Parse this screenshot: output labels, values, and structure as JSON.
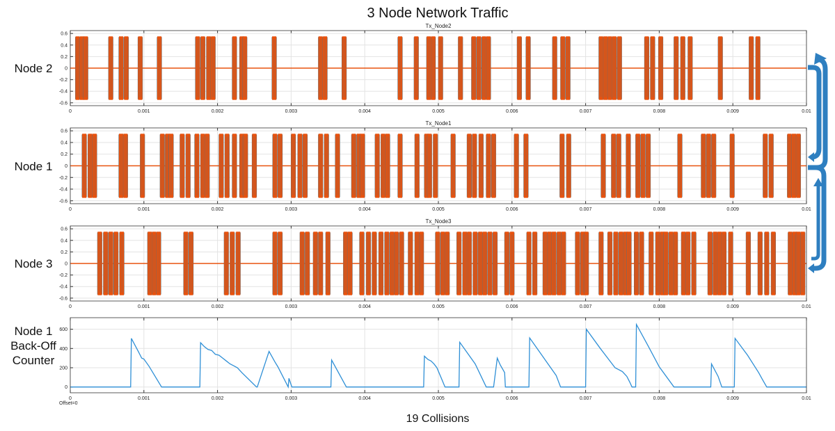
{
  "title": "3 Node Network Traffic",
  "footer": "19 Collisions",
  "offset_label": "Offset=0",
  "colors": {
    "signal": "#e8520e",
    "signal_edge": "#6b6b6b",
    "counter": "#2e8fd6",
    "arrow": "#2e7fc0",
    "grid": "#e3e3e3"
  },
  "chart_data": [
    {
      "type": "line",
      "title": "Tx_Node2",
      "row_label": "Node 2",
      "xlim": [
        0,
        0.01
      ],
      "ylim": [
        -0.65,
        0.65
      ],
      "x_ticks": [
        "0",
        "0.001",
        "0.002",
        "0.003",
        "0.004",
        "0.005",
        "0.006",
        "0.007",
        "0.008",
        "0.009",
        "0.01"
      ],
      "y_ticks": [
        "0.6",
        "0.4",
        "0.2",
        "0",
        "-0.2",
        "-0.4",
        "-0.6"
      ],
      "amplitude": 0.55,
      "bursts": [
        0.0001,
        0.00016,
        0.00021,
        0.00055,
        0.00069,
        0.00076,
        0.00095,
        0.00121,
        0.00173,
        0.0018,
        0.00188,
        0.00194,
        0.00223,
        0.00233,
        0.00237,
        0.00277,
        0.0034,
        0.00346,
        0.00372,
        0.00448,
        0.0047,
        0.00487,
        0.00493,
        0.00503,
        0.0053,
        0.00548,
        0.00555,
        0.00562,
        0.00568,
        0.0061,
        0.00622,
        0.00658,
        0.00669,
        0.00676,
        0.00721,
        0.00727,
        0.00733,
        0.00739,
        0.00746,
        0.00783,
        0.00791,
        0.00802,
        0.00823,
        0.00832,
        0.00842,
        0.00883,
        0.00925,
        0.00934
      ]
    },
    {
      "type": "line",
      "title": "Tx_Node1",
      "row_label": "Node 1",
      "xlim": [
        0,
        0.01
      ],
      "ylim": [
        -0.65,
        0.65
      ],
      "x_ticks": [
        "0",
        "0.001",
        "0.002",
        "0.003",
        "0.004",
        "0.005",
        "0.006",
        "0.007",
        "0.008",
        "0.009",
        "0.01"
      ],
      "y_ticks": [
        "0.6",
        "0.4",
        "0.2",
        "0",
        "-0.2",
        "-0.4",
        "-0.6"
      ],
      "amplitude": 0.55,
      "bursts": [
        0.00019,
        0.00027,
        0.00033,
        0.00069,
        0.00075,
        0.00098,
        0.00125,
        0.00132,
        0.00137,
        0.00152,
        0.0016,
        0.00172,
        0.0018,
        0.00186,
        0.00205,
        0.00213,
        0.00223,
        0.00233,
        0.00238,
        0.0025,
        0.00278,
        0.00285,
        0.00303,
        0.00312,
        0.00319,
        0.0034,
        0.00348,
        0.00363,
        0.00385,
        0.00392,
        0.00397,
        0.00417,
        0.00425,
        0.00431,
        0.00448,
        0.00471,
        0.00484,
        0.00488,
        0.00496,
        0.0052,
        0.00542,
        0.00549,
        0.00558,
        0.00568,
        0.00575,
        0.00606,
        0.00619,
        0.00668,
        0.00677,
        0.00724,
        0.00738,
        0.00745,
        0.00758,
        0.00771,
        0.00778,
        0.00785,
        0.00828,
        0.0086,
        0.00867,
        0.00874,
        0.00899,
        0.00944,
        0.00952,
        0.00977,
        0.00983,
        0.00989
      ]
    },
    {
      "type": "line",
      "title": "Tx_Node3",
      "row_label": "Node 3",
      "xlim": [
        0,
        0.01
      ],
      "ylim": [
        -0.65,
        0.65
      ],
      "x_ticks": [
        "0",
        "0.001",
        "0.002",
        "0.003",
        "0.004",
        "0.005",
        "0.006",
        "0.007",
        "0.008",
        "0.009",
        "0.01"
      ],
      "y_ticks": [
        "0.6",
        "0.4",
        "0.2",
        "0",
        "-0.2",
        "-0.4",
        "-0.6"
      ],
      "amplitude": 0.55,
      "bursts": [
        0.0004,
        0.00048,
        0.00055,
        0.00062,
        0.0007,
        0.00108,
        0.00114,
        0.0012,
        0.00157,
        0.00164,
        0.00212,
        0.0022,
        0.00228,
        0.00278,
        0.00285,
        0.00315,
        0.00322,
        0.00333,
        0.0034,
        0.0035,
        0.00374,
        0.0038,
        0.00396,
        0.00405,
        0.00413,
        0.00422,
        0.0043,
        0.00437,
        0.00443,
        0.0045,
        0.00462,
        0.00471,
        0.00477,
        0.00499,
        0.00506,
        0.00512,
        0.00528,
        0.00536,
        0.00542,
        0.0055,
        0.00557,
        0.00563,
        0.0057,
        0.00577,
        0.00593,
        0.006,
        0.00623,
        0.00631,
        0.00645,
        0.00651,
        0.00657,
        0.00664,
        0.0067,
        0.00689,
        0.00696,
        0.00701,
        0.00721,
        0.00733,
        0.00741,
        0.00748,
        0.00754,
        0.00759,
        0.00769,
        0.00776,
        0.00789,
        0.00798,
        0.00804,
        0.00809,
        0.00816,
        0.00822,
        0.00833,
        0.00839,
        0.00847,
        0.00869,
        0.00876,
        0.00882,
        0.00888,
        0.00897,
        0.00921,
        0.00937,
        0.00946,
        0.00955,
        0.00978,
        0.00984,
        0.00989,
        0.00995
      ]
    },
    {
      "type": "line",
      "title": "",
      "row_label": [
        "Node 1",
        "Back-Off",
        "Counter"
      ],
      "xlim": [
        0,
        0.01
      ],
      "ylim": [
        -60,
        720
      ],
      "x_ticks": [
        "0",
        "0.001",
        "0.002",
        "0.003",
        "0.004",
        "0.005",
        "0.006",
        "0.007",
        "0.008",
        "0.009",
        "0.01"
      ],
      "y_ticks": [
        "600",
        "400",
        "200",
        "0"
      ],
      "x": [
        0,
        0.00082,
        0.00083,
        0.00093,
        0.00097,
        0.001,
        0.00107,
        0.00124,
        0.00176,
        0.00177,
        0.00182,
        0.00187,
        0.00192,
        0.00197,
        0.00202,
        0.00207,
        0.00212,
        0.00217,
        0.00222,
        0.00227,
        0.00233,
        0.00253,
        0.00254,
        0.0027,
        0.00278,
        0.00282,
        0.00296,
        0.00297,
        0.00301,
        0.00354,
        0.00355,
        0.00375,
        0.0048,
        0.00481,
        0.00486,
        0.0049,
        0.00494,
        0.00498,
        0.00503,
        0.00509,
        0.00528,
        0.00529,
        0.0055,
        0.00565,
        0.00575,
        0.0058,
        0.00584,
        0.0059,
        0.00591,
        0.006,
        0.00604,
        0.00623,
        0.00624,
        0.00648,
        0.0066,
        0.00666,
        0.007,
        0.00701,
        0.0072,
        0.0074,
        0.0075,
        0.00756,
        0.0076,
        0.00763,
        0.00768,
        0.00769,
        0.00784,
        0.008,
        0.0082,
        0.0087,
        0.00871,
        0.0088,
        0.00885,
        0.00902,
        0.00903,
        0.0092,
        0.00935,
        0.0094,
        0.00946,
        0.01
      ],
      "y": [
        0,
        0,
        505,
        360,
        300,
        290,
        215,
        0,
        0,
        460,
        420,
        390,
        380,
        340,
        330,
        300,
        270,
        240,
        220,
        200,
        150,
        0,
        0,
        370,
        260,
        210,
        0,
        90,
        0,
        0,
        280,
        0,
        0,
        320,
        285,
        270,
        240,
        200,
        110,
        0,
        0,
        465,
        240,
        0,
        0,
        300,
        230,
        150,
        0,
        0,
        0,
        0,
        510,
        250,
        120,
        0,
        0,
        600,
        400,
        200,
        160,
        110,
        50,
        0,
        0,
        650,
        440,
        210,
        0,
        0,
        240,
        110,
        0,
        0,
        505,
        330,
        150,
        80,
        0,
        0
      ]
    }
  ]
}
